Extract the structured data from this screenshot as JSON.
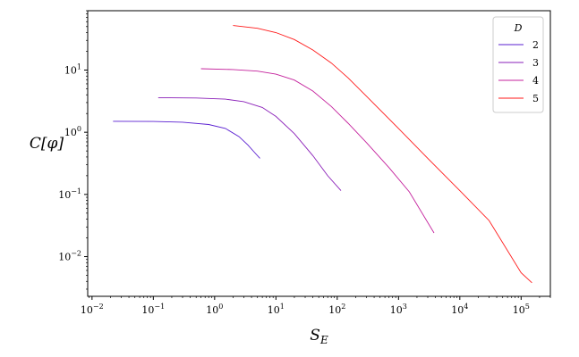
{
  "chart_data": {
    "type": "line",
    "xscale": "log",
    "yscale": "log",
    "xlabel": "S_E",
    "ylabel": "C[φ]",
    "xlim": [
      0.0085,
      300000
    ],
    "ylim": [
      0.0023,
      90
    ],
    "x_ticks": [
      {
        "base": "10",
        "exp": "−2",
        "value": 0.01
      },
      {
        "base": "10",
        "exp": "−1",
        "value": 0.1
      },
      {
        "base": "10",
        "exp": "0",
        "value": 1
      },
      {
        "base": "10",
        "exp": "1",
        "value": 10
      },
      {
        "base": "10",
        "exp": "2",
        "value": 100
      },
      {
        "base": "10",
        "exp": "3",
        "value": 1000
      },
      {
        "base": "10",
        "exp": "4",
        "value": 10000
      },
      {
        "base": "10",
        "exp": "5",
        "value": 100000
      }
    ],
    "y_ticks": [
      {
        "base": "10",
        "exp": "−2",
        "value": 0.01
      },
      {
        "base": "10",
        "exp": "−1",
        "value": 0.1
      },
      {
        "base": "10",
        "exp": "0",
        "value": 1
      },
      {
        "base": "10",
        "exp": "1",
        "value": 10
      }
    ],
    "grid": false,
    "legend": {
      "title": "D",
      "placement": "top-right"
    },
    "series": [
      {
        "name": "2",
        "color": "#5a1fd1",
        "x": [
          0.022,
          0.1,
          0.3,
          0.8,
          1.5,
          2.5,
          3.5,
          4.5,
          5.5
        ],
        "y": [
          1.5,
          1.49,
          1.45,
          1.33,
          1.15,
          0.85,
          0.62,
          0.47,
          0.38
        ]
      },
      {
        "name": "3",
        "color": "#8a1fb8",
        "x": [
          0.12,
          0.5,
          1.5,
          3,
          6,
          10,
          20,
          40,
          70,
          115
        ],
        "y": [
          3.6,
          3.55,
          3.4,
          3.1,
          2.5,
          1.8,
          0.95,
          0.42,
          0.2,
          0.115
        ]
      },
      {
        "name": "4",
        "color": "#c4219c",
        "x": [
          0.6,
          2,
          5,
          10,
          20,
          40,
          80,
          150,
          300,
          700,
          1500,
          3800
        ],
        "y": [
          10.5,
          10.2,
          9.6,
          8.6,
          6.9,
          4.6,
          2.6,
          1.4,
          0.68,
          0.27,
          0.11,
          0.024
        ]
      },
      {
        "name": "5",
        "color": "#ff1a1a",
        "x": [
          2,
          5,
          10,
          20,
          40,
          80,
          150,
          300,
          1000,
          3000,
          10000,
          30000,
          100000,
          150000
        ],
        "y": [
          52,
          47,
          40,
          31,
          21,
          13,
          7.5,
          3.8,
          1.15,
          0.38,
          0.115,
          0.038,
          0.0055,
          0.0038
        ]
      }
    ]
  }
}
